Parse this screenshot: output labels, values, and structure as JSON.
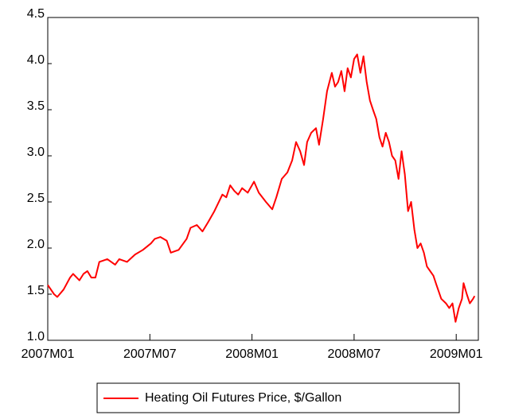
{
  "chart_data": {
    "type": "line",
    "xlim": [
      0,
      25.3
    ],
    "xticks": [
      {
        "value": 0,
        "label": "2007M01"
      },
      {
        "value": 6,
        "label": "2007M07"
      },
      {
        "value": 12,
        "label": "2008M01"
      },
      {
        "value": 18,
        "label": "2008M07"
      },
      {
        "value": 24,
        "label": "2009M01"
      }
    ],
    "ylim": [
      1.0,
      4.5
    ],
    "yticks": [
      {
        "value": 1.0,
        "label": "1.0"
      },
      1.5,
      {
        "value": 2.0,
        "label": "2.0"
      },
      2.5,
      {
        "value": 3.0,
        "label": "3.0"
      },
      3.5,
      {
        "value": 4.0,
        "label": "4.0"
      },
      4.5
    ],
    "legend": "bottom",
    "series": [
      {
        "name": "Heating Oil Futures Price, $/Gallon",
        "color": "#ff0000",
        "x": [
          0,
          0.37,
          0.56,
          0.93,
          1.31,
          1.49,
          1.86,
          2.1,
          2.33,
          2.56,
          2.8,
          3.03,
          3.5,
          3.96,
          4.2,
          4.66,
          5.13,
          5.59,
          6.06,
          6.29,
          6.62,
          6.99,
          7.23,
          7.69,
          8.16,
          8.39,
          8.76,
          9.09,
          9.42,
          9.79,
          10.26,
          10.49,
          10.72,
          10.96,
          11.19,
          11.42,
          11.75,
          12.12,
          12.4,
          12.82,
          13.19,
          13.43,
          13.75,
          14.08,
          14.36,
          14.59,
          14.83,
          15.06,
          15.24,
          15.48,
          15.76,
          15.94,
          16.18,
          16.41,
          16.69,
          16.88,
          17.06,
          17.25,
          17.44,
          17.62,
          17.81,
          18.0,
          18.18,
          18.37,
          18.55,
          18.74,
          18.93,
          19.11,
          19.3,
          19.49,
          19.67,
          19.86,
          20.05,
          20.23,
          20.42,
          20.61,
          20.79,
          20.98,
          21.17,
          21.35,
          21.54,
          21.72,
          21.91,
          22.1,
          22.28,
          22.47,
          22.66,
          22.84,
          23.12,
          23.4,
          23.59,
          23.78,
          23.96,
          24.15,
          24.34,
          24.43,
          24.62,
          24.8,
          24.99,
          25.08
        ],
        "values": [
          1.6,
          1.5,
          1.47,
          1.55,
          1.68,
          1.72,
          1.65,
          1.72,
          1.75,
          1.68,
          1.68,
          1.85,
          1.88,
          1.82,
          1.88,
          1.85,
          1.93,
          1.98,
          2.05,
          2.1,
          2.12,
          2.08,
          1.95,
          1.98,
          2.1,
          2.22,
          2.25,
          2.18,
          2.28,
          2.4,
          2.58,
          2.55,
          2.68,
          2.62,
          2.58,
          2.65,
          2.6,
          2.72,
          2.6,
          2.5,
          2.42,
          2.55,
          2.75,
          2.82,
          2.95,
          3.15,
          3.05,
          2.9,
          3.15,
          3.25,
          3.3,
          3.12,
          3.4,
          3.7,
          3.9,
          3.75,
          3.8,
          3.92,
          3.7,
          3.95,
          3.85,
          4.05,
          4.1,
          3.9,
          4.08,
          3.8,
          3.6,
          3.5,
          3.4,
          3.2,
          3.1,
          3.25,
          3.15,
          3.0,
          2.95,
          2.75,
          3.05,
          2.8,
          2.4,
          2.5,
          2.2,
          2.0,
          2.05,
          1.95,
          1.8,
          1.75,
          1.7,
          1.6,
          1.45,
          1.4,
          1.35,
          1.4,
          1.2,
          1.35,
          1.45,
          1.62,
          1.5,
          1.4,
          1.45,
          1.48
        ]
      }
    ]
  }
}
